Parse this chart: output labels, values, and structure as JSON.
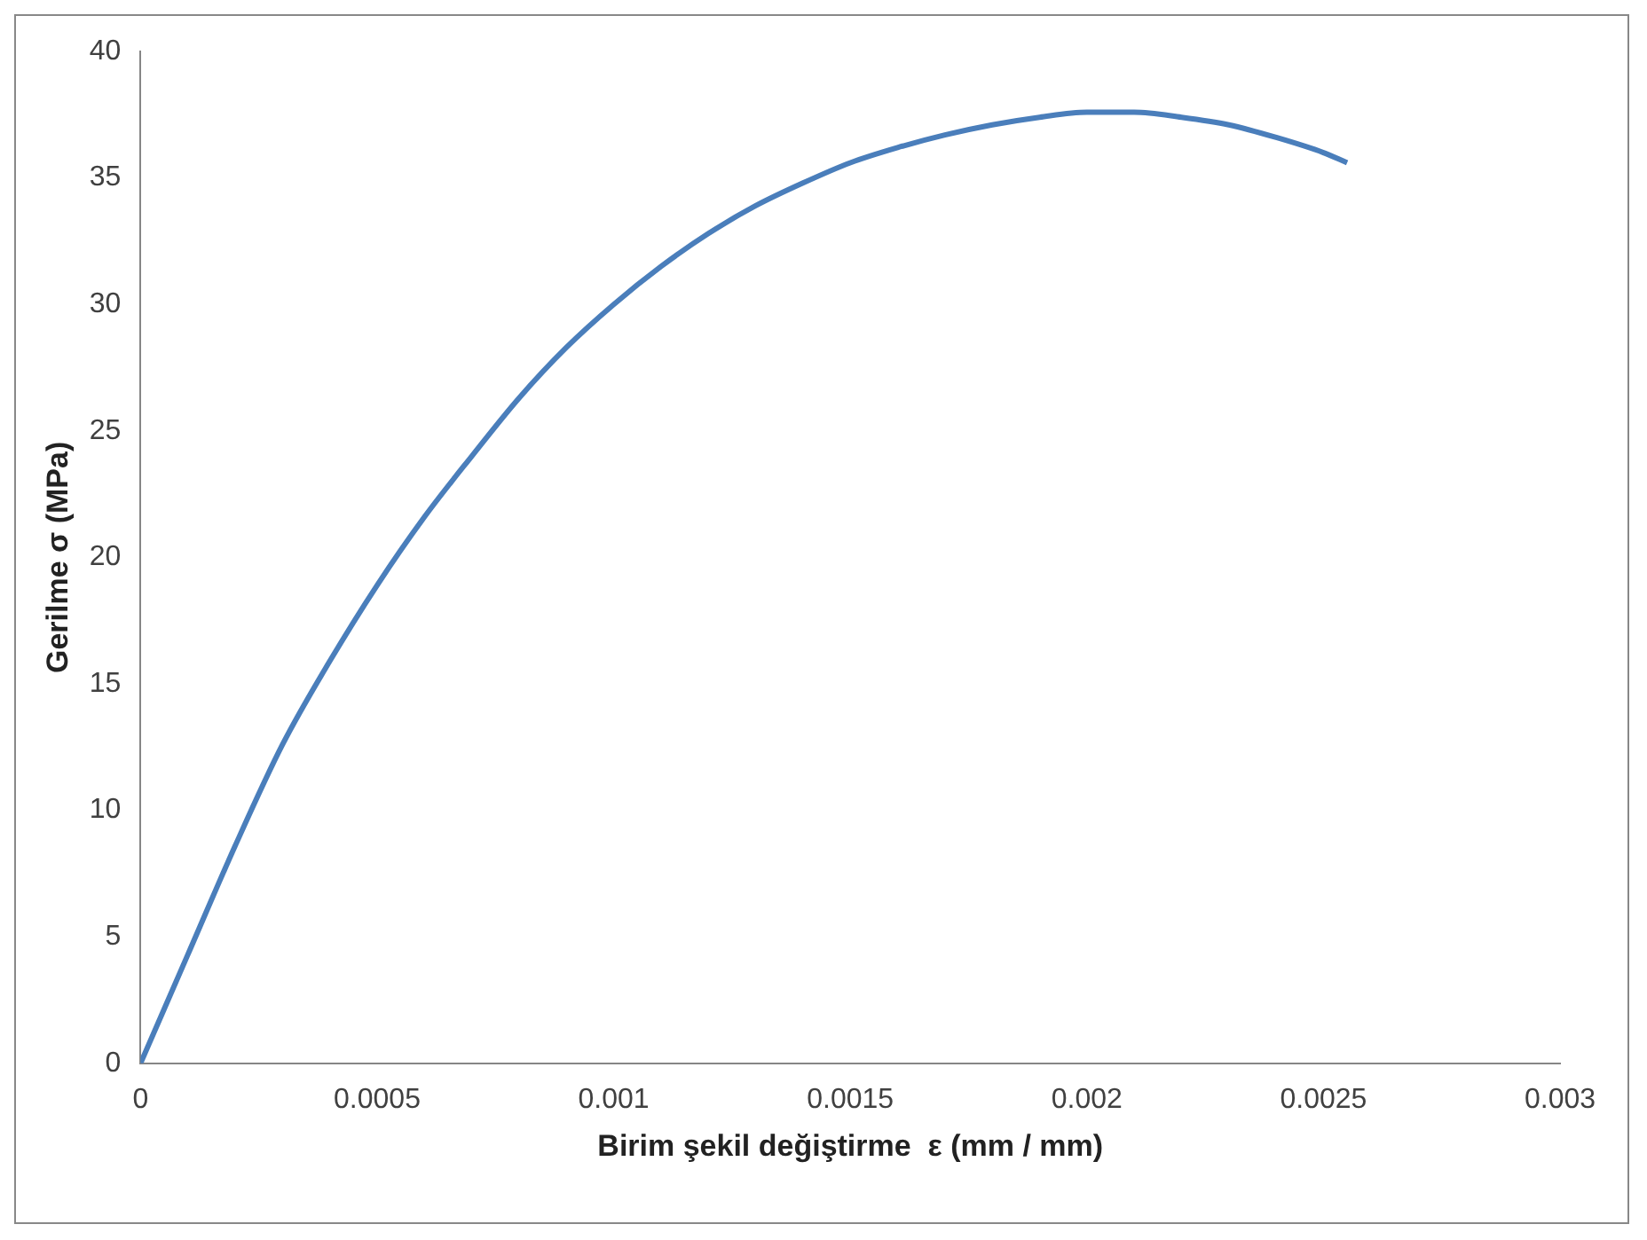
{
  "chart_data": {
    "type": "line",
    "xlabel": "Birim şekil değiştirme  ε (mm / mm)",
    "ylabel": "Gerilme σ (MPa)",
    "x": [
      0,
      0.0001,
      0.0002,
      0.0003,
      0.0004,
      0.0005,
      0.0006,
      0.0007,
      0.0008,
      0.0009,
      0.001,
      0.0011,
      0.0012,
      0.0013,
      0.0014,
      0.0015,
      0.0016,
      0.0017,
      0.0018,
      0.0019,
      0.002,
      0.0021,
      0.0022,
      0.0023,
      0.0024,
      0.0025,
      0.00255
    ],
    "series": [
      {
        "color": "#4a7ebb",
        "values": [
          0,
          4.3,
          8.6,
          12.6,
          15.9,
          18.9,
          21.6,
          24,
          26.3,
          28.3,
          30,
          31.5,
          32.8,
          33.9,
          34.8,
          35.6,
          36.2,
          36.7,
          37.1,
          37.4,
          37.6,
          37.6,
          37.4,
          37.1,
          36.6,
          36,
          35.6
        ]
      }
    ],
    "xlim": [
      0,
      0.003
    ],
    "xticks": [
      0,
      0.0005,
      0.001,
      0.0015,
      0.002,
      0.0025,
      0.003
    ],
    "ylim": [
      0,
      40
    ],
    "yticks": [
      0,
      5,
      10,
      15,
      20,
      25,
      30,
      35,
      40
    ],
    "grid": false,
    "legend": false,
    "marker": "none",
    "line_style": "solid"
  }
}
